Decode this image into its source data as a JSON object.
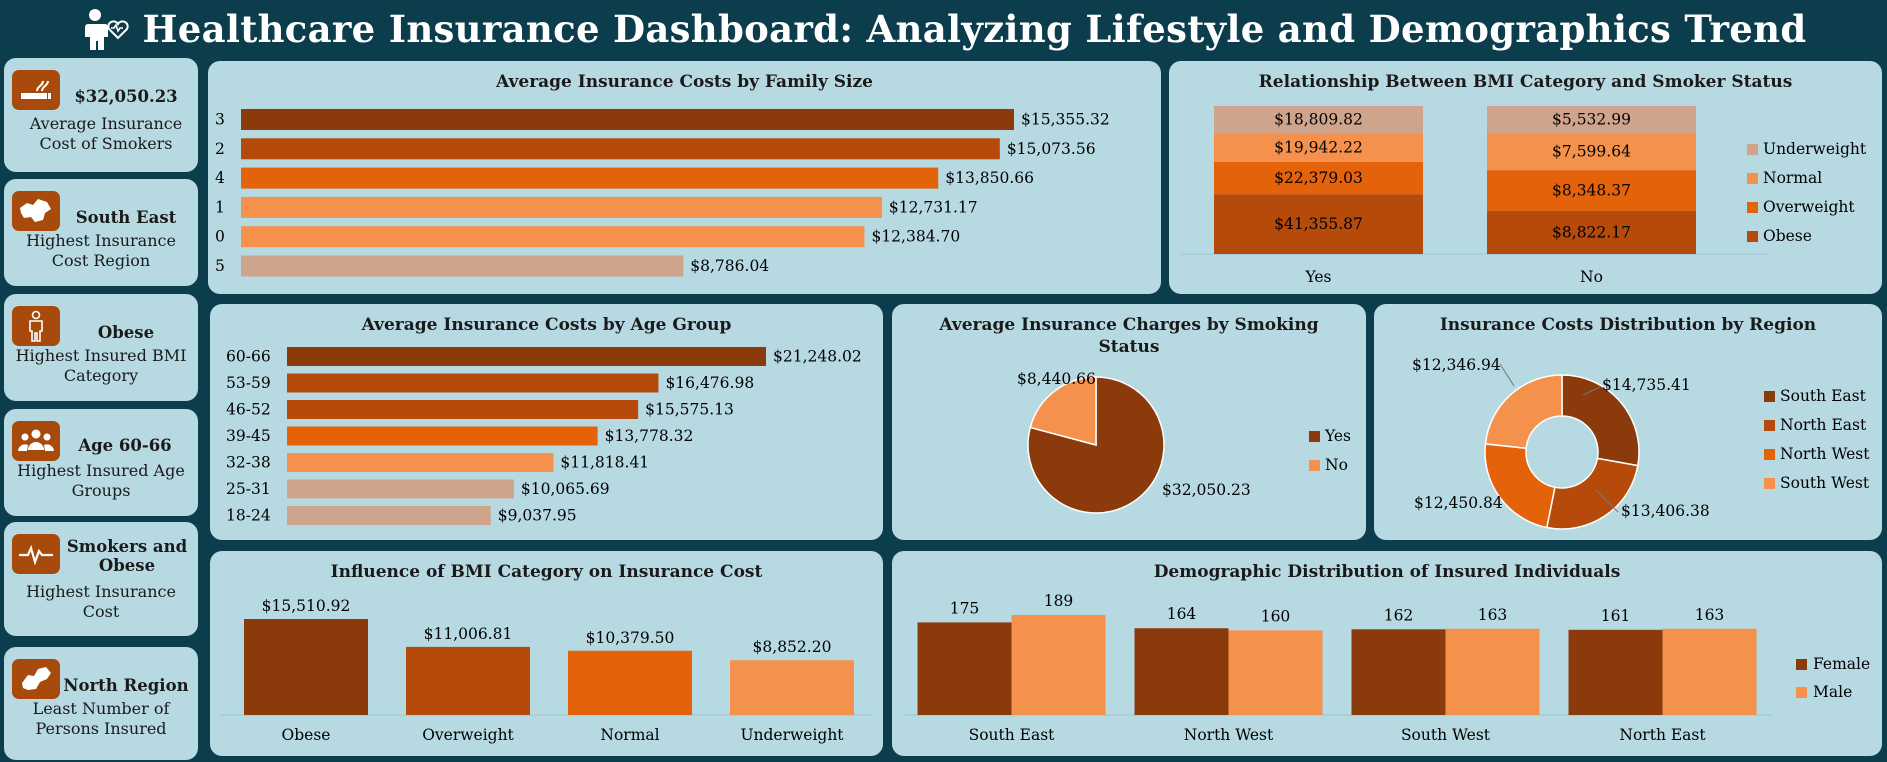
{
  "header": {
    "title": "Healthcare Insurance Dashboard: Analyzing Lifestyle and Demographics Trend",
    "icon": "person-heart-icon"
  },
  "kpis": [
    {
      "icon": "smoking-icon",
      "value": "$32,050.23",
      "desc": "Average Insurance Cost of Smokers"
    },
    {
      "icon": "region-map-icon",
      "value": "South East",
      "desc": "Highest Insurance Cost Region"
    },
    {
      "icon": "body-icon",
      "value": "Obese",
      "desc": "Highest Insured BMI Category"
    },
    {
      "icon": "group-icon",
      "value": "Age 60-66",
      "desc": "Highest Insured Age Groups"
    },
    {
      "icon": "heartbeat-icon",
      "value": "Smokers and Obese",
      "desc": "Highest Insurance Cost"
    },
    {
      "icon": "region-map-icon",
      "value": "North Region",
      "desc": "Least Number of Persons Insured"
    }
  ],
  "colors": {
    "c1": "#8b3a0c",
    "c2": "#b54a0a",
    "c3": "#e4620a",
    "c4": "#f4914c",
    "c5": "#cfa48c"
  },
  "chart_data": [
    {
      "id": "family",
      "type": "bar",
      "orientation": "horizontal",
      "title": "Average Insurance Costs by Family Size",
      "categories": [
        "3",
        "2",
        "4",
        "1",
        "0",
        "5"
      ],
      "values": [
        15355.32,
        15073.56,
        13850.66,
        12731.17,
        12384.7,
        8786.04
      ],
      "labels": [
        "$15,355.32",
        "$15,073.56",
        "$13,850.66",
        "$12,731.17",
        "$12,384.70",
        "$8,786.04"
      ],
      "bar_colors": [
        "#8b3a0c",
        "#b54a0a",
        "#e4620a",
        "#f4914c",
        "#f4914c",
        "#cfa48c"
      ]
    },
    {
      "id": "bmi_smoker",
      "type": "bar",
      "stacked": true,
      "title": "Relationship Between BMI Category and Smoker Status",
      "categories": [
        "Yes",
        "No"
      ],
      "series": [
        {
          "name": "Obese",
          "values": [
            41355.87,
            8822.17
          ],
          "labels": [
            "$41,355.87",
            "$8,822.17"
          ],
          "color": "#b54a0a"
        },
        {
          "name": "Overweight",
          "values": [
            22379.03,
            8348.37
          ],
          "labels": [
            "$22,379.03",
            "$8,348.37"
          ],
          "color": "#e4620a"
        },
        {
          "name": "Normal",
          "values": [
            19942.22,
            7599.64
          ],
          "labels": [
            "$19,942.22",
            "$7,599.64"
          ],
          "color": "#f4914c"
        },
        {
          "name": "Underweight",
          "values": [
            18809.82,
            5532.99
          ],
          "labels": [
            "$18,809.82",
            "$5,532.99"
          ],
          "color": "#cfa48c"
        }
      ],
      "legend": [
        "Underweight",
        "Normal",
        "Overweight",
        "Obese"
      ],
      "legend_position": "right",
      "normalized": true
    },
    {
      "id": "age",
      "type": "bar",
      "orientation": "horizontal",
      "title": "Average Insurance Costs by Age Group",
      "categories": [
        "60-66",
        "53-59",
        "46-52",
        "39-45",
        "32-38",
        "25-31",
        "18-24"
      ],
      "values": [
        21248.02,
        16476.98,
        15575.13,
        13778.32,
        11818.41,
        10065.69,
        9037.95
      ],
      "labels": [
        "$21,248.02",
        "$16,476.98",
        "$15,575.13",
        "$13,778.32",
        "$11,818.41",
        "$10,065.69",
        "$9,037.95"
      ],
      "bar_colors": [
        "#8b3a0c",
        "#b54a0a",
        "#b54a0a",
        "#e4620a",
        "#f4914c",
        "#cfa48c",
        "#cfa48c"
      ]
    },
    {
      "id": "smoking",
      "type": "pie",
      "title": "Average Insurance Charges by Smoking Status",
      "categories": [
        "Yes",
        "No"
      ],
      "values": [
        32050.23,
        8440.66
      ],
      "labels": [
        "$32,050.23",
        "$8,440.66"
      ],
      "colors": [
        "#8b3a0c",
        "#f4914c"
      ],
      "legend_position": "right"
    },
    {
      "id": "region",
      "type": "pie",
      "donut": true,
      "title": "Insurance Costs Distribution by Region",
      "categories": [
        "South East",
        "North East",
        "North West",
        "South West"
      ],
      "values": [
        14735.41,
        13406.38,
        12450.84,
        12346.94
      ],
      "labels": [
        "$14,735.41",
        "$13,406.38",
        "$12,450.84",
        "$12,346.94"
      ],
      "colors": [
        "#8b3a0c",
        "#b54a0a",
        "#e4620a",
        "#f4914c"
      ],
      "legend_position": "right"
    },
    {
      "id": "bmi",
      "type": "bar",
      "title": "Influence of BMI Category on Insurance Cost",
      "categories": [
        "Obese",
        "Overweight",
        "Normal",
        "Underweight"
      ],
      "values": [
        15510.92,
        11006.81,
        10379.5,
        8852.2
      ],
      "labels": [
        "$15,510.92",
        "$11,006.81",
        "$10,379.50",
        "$8,852.20"
      ],
      "bar_colors": [
        "#8b3a0c",
        "#b54a0a",
        "#e4620a",
        "#f4914c"
      ]
    },
    {
      "id": "demographic",
      "type": "bar",
      "title": "Demographic Distribution of Insured Individuals",
      "categories": [
        "South East",
        "North West",
        "South West",
        "North East"
      ],
      "series": [
        {
          "name": "Female",
          "values": [
            175,
            164,
            162,
            161
          ],
          "color": "#8b3a0c"
        },
        {
          "name": "Male",
          "values": [
            189,
            160,
            163,
            163
          ],
          "color": "#f4914c"
        }
      ],
      "legend_position": "right"
    }
  ]
}
